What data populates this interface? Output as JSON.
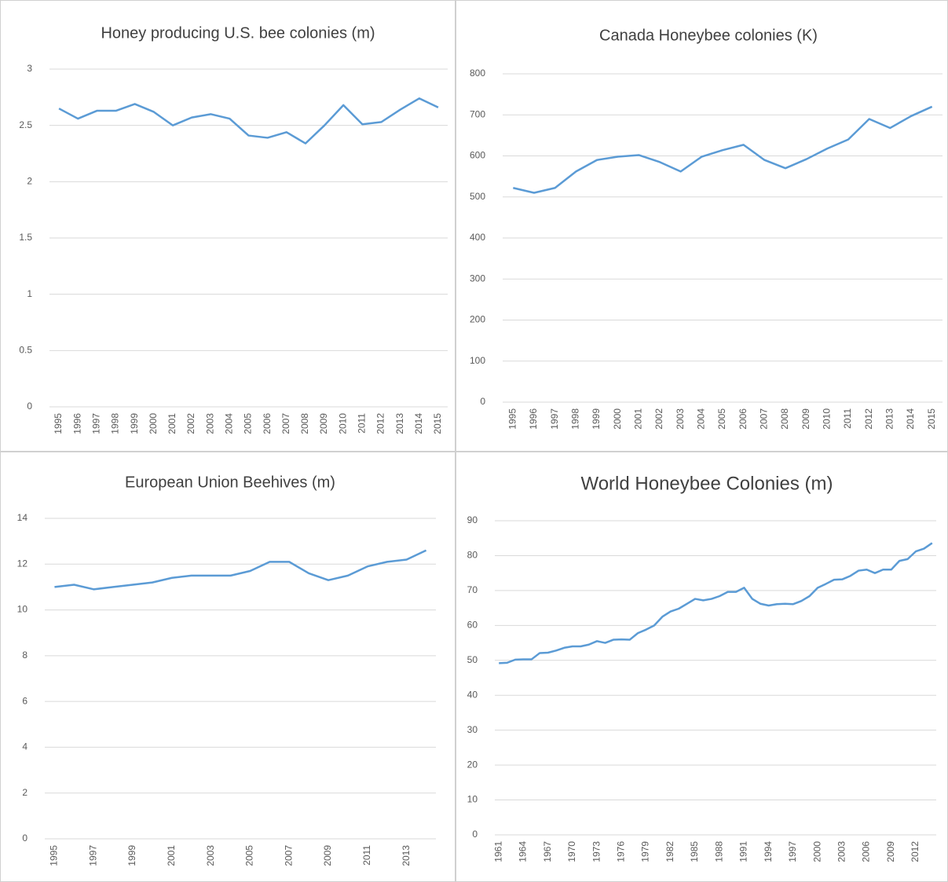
{
  "chart_data": [
    {
      "type": "line",
      "title": "Honey producing U.S. bee colonies (m)",
      "categories": [
        "1995",
        "1996",
        "1997",
        "1998",
        "1999",
        "2000",
        "2001",
        "2002",
        "2003",
        "2004",
        "2005",
        "2006",
        "2007",
        "2008",
        "2009",
        "2010",
        "2011",
        "2012",
        "2013",
        "2014",
        "2015"
      ],
      "values": [
        2.65,
        2.56,
        2.63,
        2.63,
        2.69,
        2.62,
        2.5,
        2.57,
        2.6,
        2.56,
        2.41,
        2.39,
        2.44,
        2.34,
        2.5,
        2.68,
        2.51,
        2.53,
        2.64,
        2.74,
        2.66
      ],
      "color": "#5b9bd5",
      "ylim": [
        0,
        3
      ],
      "yticks": [
        0,
        0.5,
        1,
        1.5,
        2,
        2.5,
        3
      ],
      "grid": true
    },
    {
      "type": "line",
      "title": "Canada Honeybee colonies (K)",
      "categories": [
        "1995",
        "1996",
        "1997",
        "1998",
        "1999",
        "2000",
        "2001",
        "2002",
        "2003",
        "2004",
        "2005",
        "2006",
        "2007",
        "2008",
        "2009",
        "2010",
        "2011",
        "2012",
        "2013",
        "2014",
        "2015"
      ],
      "values": [
        522,
        510,
        522,
        562,
        590,
        598,
        602,
        585,
        562,
        598,
        614,
        627,
        590,
        570,
        592,
        618,
        640,
        690,
        668,
        697,
        720
      ],
      "color": "#5b9bd5",
      "ylim": [
        0,
        800
      ],
      "yticks": [
        0,
        100,
        200,
        300,
        400,
        500,
        600,
        700,
        800
      ],
      "grid": true
    },
    {
      "type": "line",
      "title": "European Union Beehives (m)",
      "categories": [
        "1995",
        null,
        "1997",
        null,
        "1999",
        null,
        "2001",
        null,
        "2003",
        null,
        "2005",
        null,
        "2007",
        null,
        "2009",
        null,
        "2011",
        null,
        "2013",
        null
      ],
      "values": [
        11.0,
        11.1,
        10.9,
        11.0,
        11.1,
        11.2,
        11.4,
        11.5,
        11.5,
        11.5,
        11.7,
        12.1,
        12.1,
        11.6,
        11.3,
        11.5,
        11.9,
        12.1,
        12.2,
        12.6
      ],
      "color": "#5b9bd5",
      "ylim": [
        0,
        14
      ],
      "yticks": [
        0,
        2,
        4,
        6,
        8,
        10,
        12,
        14
      ],
      "grid": true
    },
    {
      "type": "line",
      "title": "World Honeybee Colonies (m)",
      "categories": [
        "1961",
        null,
        null,
        "1964",
        null,
        null,
        "1967",
        null,
        null,
        "1970",
        null,
        null,
        "1973",
        null,
        null,
        "1976",
        null,
        null,
        "1979",
        null,
        null,
        "1982",
        null,
        null,
        "1985",
        null,
        null,
        "1988",
        null,
        null,
        "1991",
        null,
        null,
        "1994",
        null,
        null,
        "1997",
        null,
        null,
        "2000",
        null,
        null,
        "2003",
        null,
        null,
        "2006",
        null,
        null,
        "2009",
        null,
        null,
        "2012",
        null,
        null
      ],
      "values": [
        49.2,
        49.3,
        50.2,
        50.3,
        50.3,
        52.1,
        52.2,
        52.8,
        53.6,
        54.0,
        54.0,
        54.5,
        55.5,
        55.0,
        55.9,
        56.0,
        55.9,
        57.8,
        58.8,
        60.0,
        62.5,
        64.0,
        64.8,
        66.2,
        67.6,
        67.2,
        67.6,
        68.4,
        69.6,
        69.6,
        70.8,
        67.6,
        66.2,
        65.7,
        66.1,
        66.2,
        66.1,
        67.0,
        68.4,
        70.8,
        71.9,
        73.1,
        73.2,
        74.2,
        75.7,
        76.0,
        75.0,
        76.0,
        76.0,
        78.5,
        79.0,
        81.2,
        82.0,
        83.6
      ],
      "color": "#5b9bd5",
      "ylim": [
        0,
        90
      ],
      "yticks": [
        0,
        10,
        20,
        30,
        40,
        50,
        60,
        70,
        80,
        90
      ],
      "grid": true
    }
  ]
}
